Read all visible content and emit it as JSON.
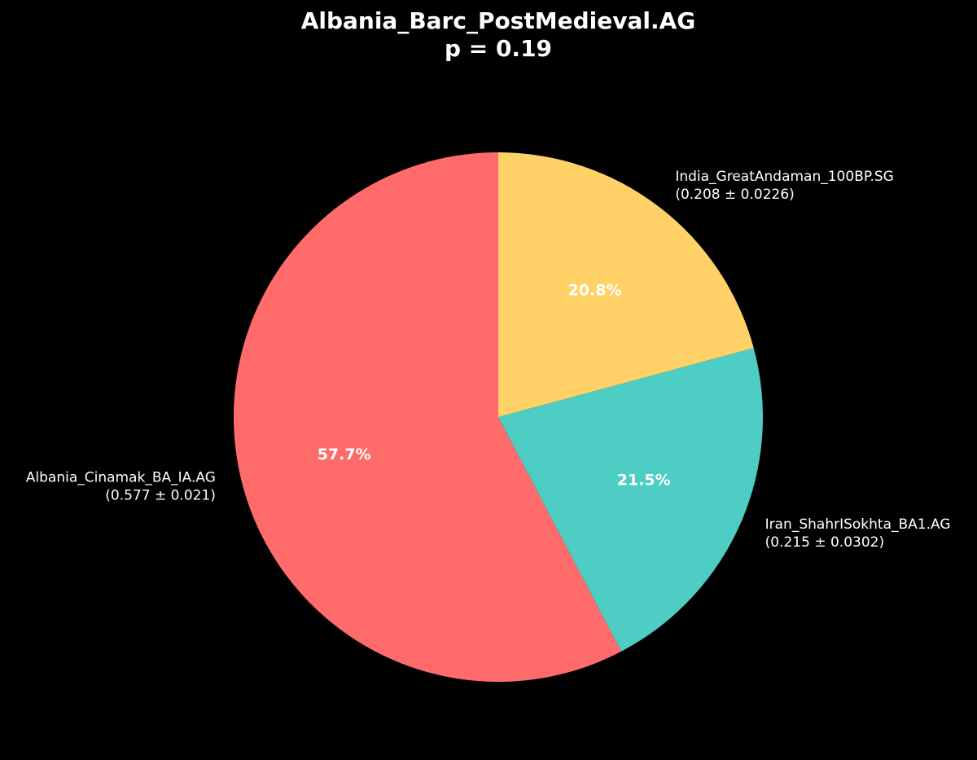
{
  "chart_data": {
    "type": "pie",
    "title": "Albania_Barc_PostMedieval.AG",
    "subtitle": "p = 0.19",
    "categories": [
      "Albania_Cinamak_BA_IA.AG",
      "Iran_ShahrISokhta_BA1.AG",
      "India_GreatAndaman_100BP.SG"
    ],
    "category_notes": [
      "(0.577 ± 0.021)",
      "(0.215 ± 0.0302)",
      "(0.208 ± 0.0226)"
    ],
    "values": [
      57.7,
      21.5,
      20.8
    ],
    "value_labels": [
      "57.7%",
      "21.5%",
      "20.8%"
    ],
    "colors": [
      "#ff6b6b",
      "#4ecdc4",
      "#ffd166"
    ],
    "start_angle": 90,
    "direction": "counterclockwise"
  }
}
